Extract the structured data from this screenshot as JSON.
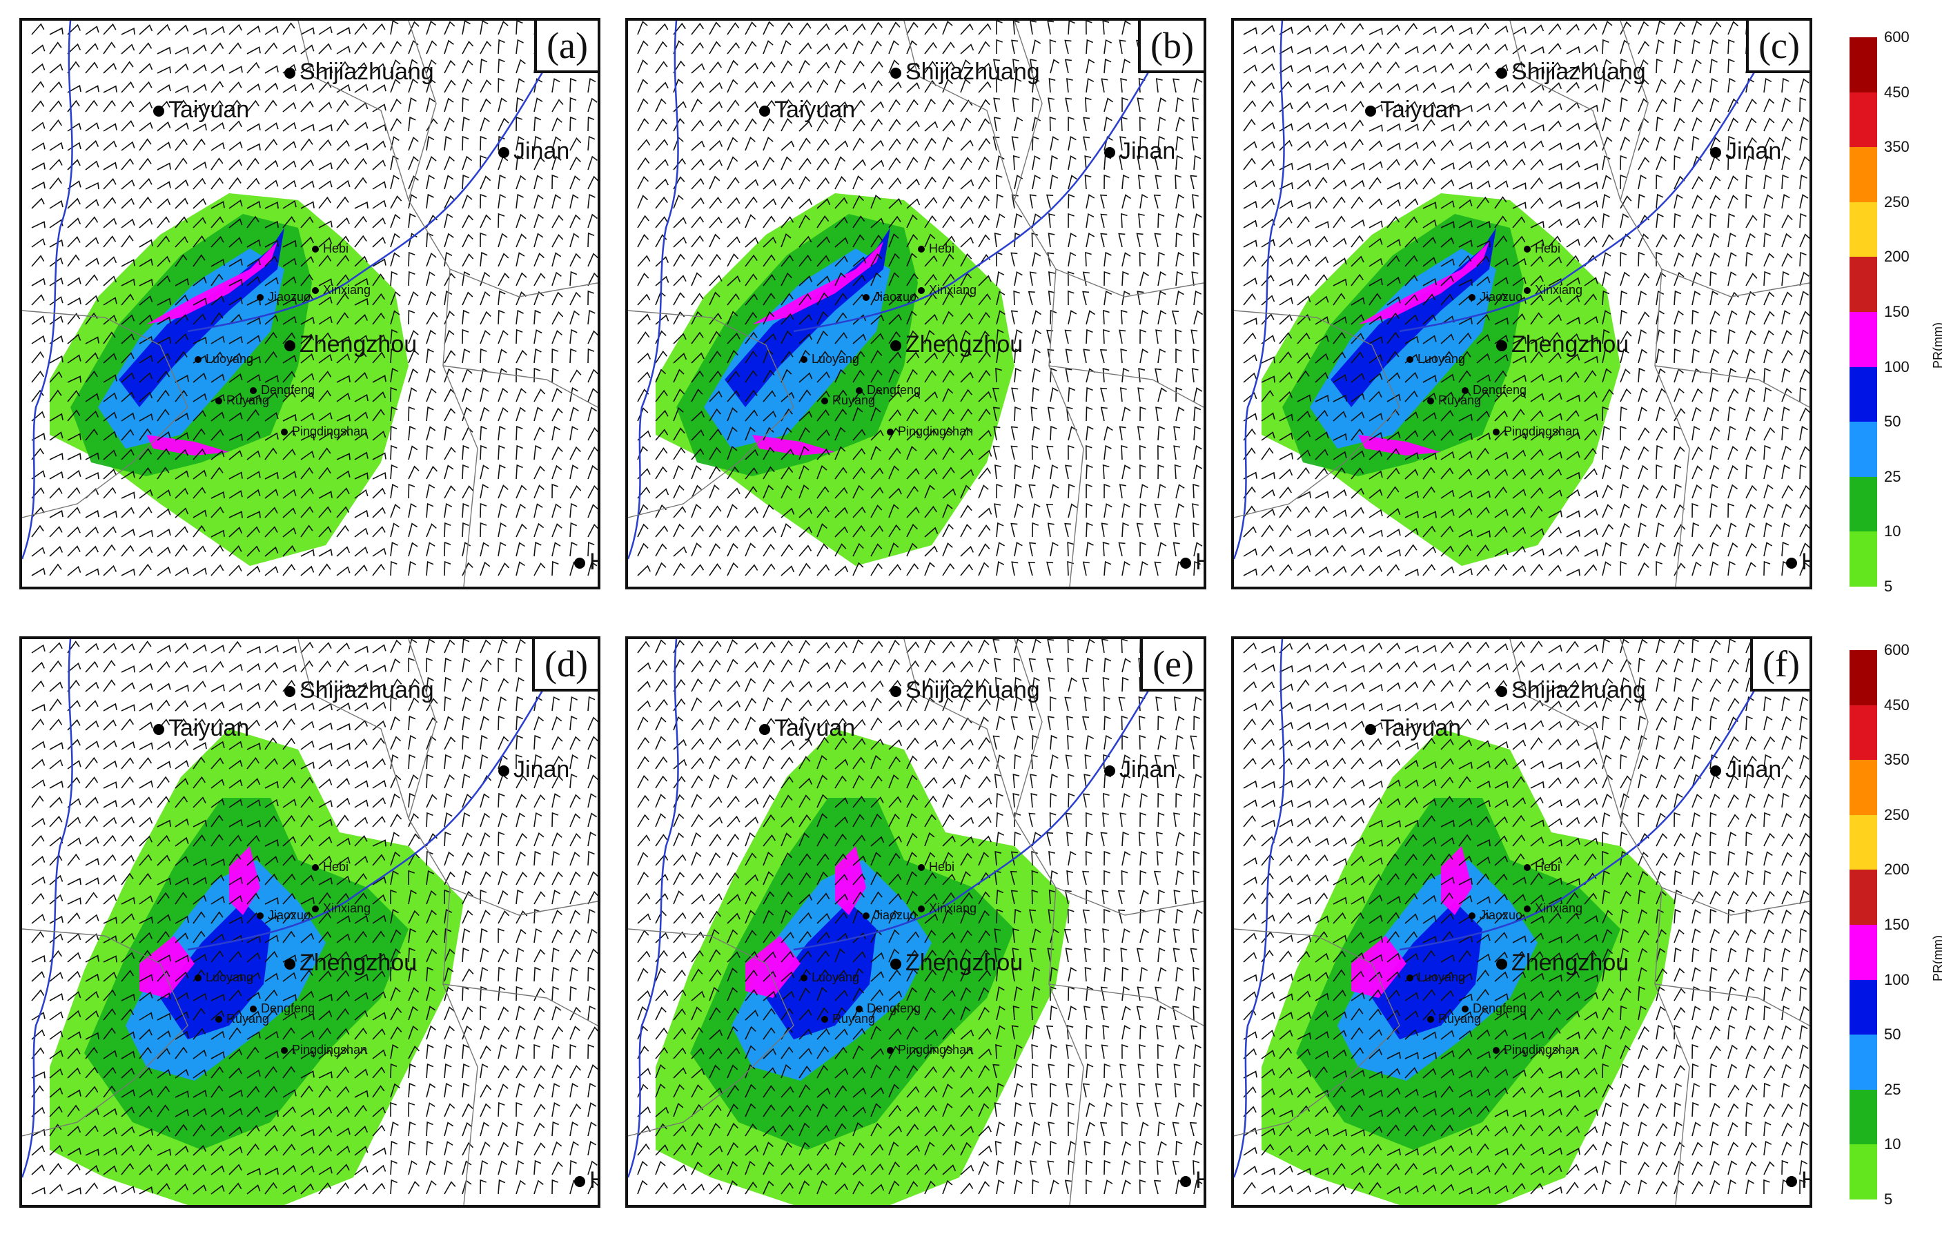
{
  "panels": [
    {
      "label": "(a)",
      "phase": 0
    },
    {
      "label": "(b)",
      "phase": 1
    },
    {
      "label": "(c)",
      "phase": 2
    },
    {
      "label": "(d)",
      "phase": 3
    },
    {
      "label": "(e)",
      "phase": 4
    },
    {
      "label": "(f)",
      "phase": 5
    }
  ],
  "cities_major": [
    "Taiyuan",
    "Shijiazhuang",
    "Jinan",
    "Zhengzhou",
    "Hefe"
  ],
  "cities_minor": [
    "Hebi",
    "Xinxiang",
    "Jiaozuo",
    "Luoyang",
    "Dengfeng",
    "Pingdingshan",
    "Ruyang"
  ],
  "colorbar": {
    "unit": "PR(mm)",
    "levels": [
      "600",
      "450",
      "350",
      "250",
      "200",
      "150",
      "100",
      "50",
      "25",
      "10",
      "5"
    ],
    "colors": [
      "#a00000",
      "#e0141e",
      "#ff8c00",
      "#ffd21e",
      "#c81e1e",
      "#ff00ff",
      "#0014e6",
      "#1e96ff",
      "#1eb41e",
      "#64e61e"
    ]
  }
}
